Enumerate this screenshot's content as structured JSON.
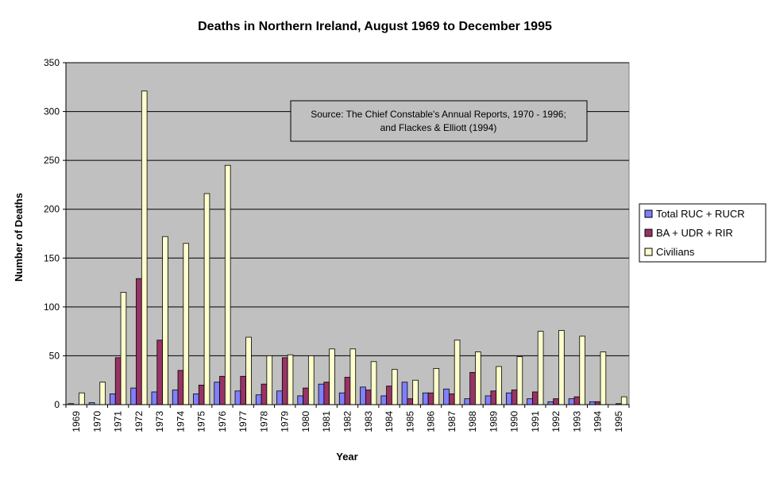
{
  "chart_data": {
    "type": "bar",
    "title": "Deaths in Northern Ireland, August 1969 to December 1995",
    "xlabel": "Year",
    "ylabel": "Number of Deaths",
    "ylim": [
      0,
      350
    ],
    "yticks": [
      0,
      50,
      100,
      150,
      200,
      250,
      300,
      350
    ],
    "grid": true,
    "plot_background": "#c0c0c0",
    "legend_position": "right",
    "annotation": {
      "line1": "Source:  The Chief Constable's Annual Reports, 1970 - 1996;",
      "line2": "and Flackes & Elliott (1994)"
    },
    "categories": [
      "1969",
      "1970",
      "1971",
      "1972",
      "1973",
      "1974",
      "1975",
      "1976",
      "1977",
      "1978",
      "1979",
      "1980",
      "1981",
      "1982",
      "1983",
      "1984",
      "1985",
      "1986",
      "1987",
      "1988",
      "1989",
      "1990",
      "1991",
      "1992",
      "1993",
      "1994",
      "1995"
    ],
    "series": [
      {
        "name": "Total RUC + RUCR",
        "color": "#8080ff",
        "values": [
          1,
          2,
          11,
          17,
          13,
          15,
          11,
          23,
          14,
          10,
          14,
          9,
          21,
          12,
          18,
          9,
          23,
          12,
          16,
          6,
          9,
          12,
          6,
          3,
          6,
          3,
          0
        ]
      },
      {
        "name": "BA + UDR + RIR",
        "color": "#993366",
        "values": [
          0,
          0,
          48,
          129,
          66,
          35,
          20,
          29,
          29,
          21,
          48,
          17,
          23,
          28,
          15,
          19,
          6,
          12,
          11,
          33,
          14,
          15,
          13,
          6,
          8,
          3,
          1
        ]
      },
      {
        "name": "Civilians",
        "color": "#ffffcc",
        "values": [
          12,
          23,
          115,
          321,
          172,
          165,
          216,
          245,
          69,
          50,
          51,
          50,
          57,
          57,
          44,
          36,
          25,
          37,
          66,
          54,
          39,
          49,
          75,
          76,
          70,
          54,
          8
        ]
      }
    ]
  }
}
